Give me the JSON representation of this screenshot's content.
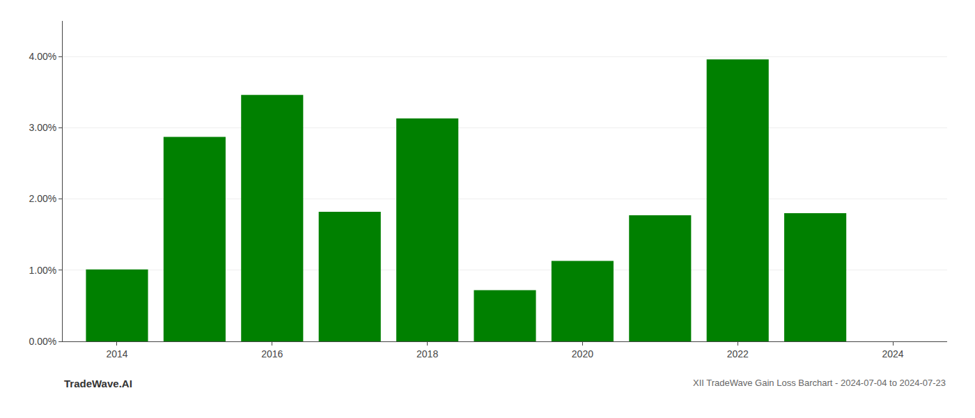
{
  "chart_data": {
    "type": "bar",
    "title": "XII TradeWave Gain Loss Barchart - 2024-07-04 to 2024-07-23",
    "annotations": [
      "TradeWave.AI"
    ],
    "x": [
      2014,
      2015,
      2016,
      2017,
      2018,
      2019,
      2020,
      2021,
      2022,
      2023
    ],
    "values": [
      1.01,
      2.87,
      3.46,
      1.82,
      3.13,
      0.72,
      1.13,
      1.77,
      3.96,
      1.8
    ],
    "color": "#008000",
    "xlim": [
      2013.3,
      2024.7
    ],
    "xticks": [
      2014,
      2016,
      2018,
      2020,
      2022,
      2024
    ],
    "ylim": [
      0,
      4.5
    ],
    "yticks": [
      {
        "value": 0.0,
        "label": "0.00%"
      },
      {
        "value": 1.0,
        "label": "1.00%"
      },
      {
        "value": 2.0,
        "label": "2.00%"
      },
      {
        "value": 3.0,
        "label": "3.00%"
      },
      {
        "value": 4.0,
        "label": "4.00%"
      }
    ],
    "grid": true
  }
}
